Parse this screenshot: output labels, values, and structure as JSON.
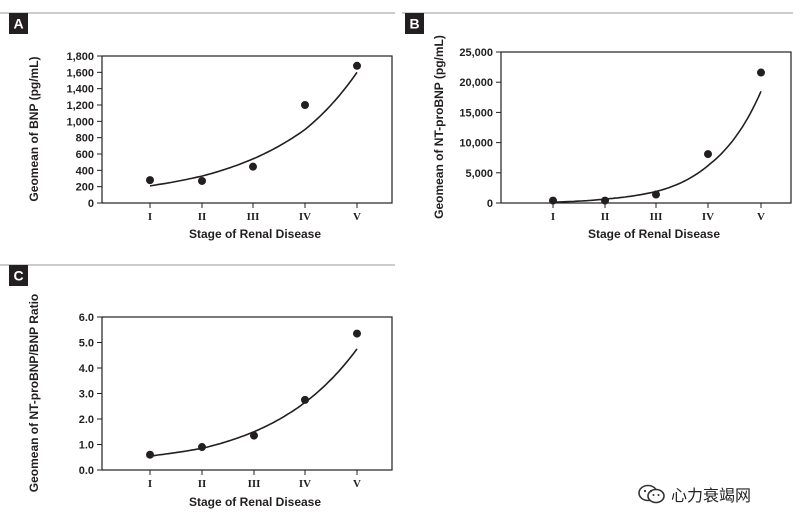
{
  "watermark": {
    "text": "心力衰竭网",
    "icon": "wechat-icon"
  },
  "chart_data": [
    {
      "panel": "A",
      "type": "scatter",
      "categories": [
        "I",
        "II",
        "III",
        "IV",
        "V"
      ],
      "values": [
        280,
        270,
        445,
        1200,
        1680
      ],
      "fit_curve": "exponential",
      "fit_values": [
        210,
        330,
        540,
        900,
        1600
      ],
      "ylabel": "Geomean of BNP (pg/mL)",
      "xlabel": "Stage of Renal Disease",
      "ylim": [
        0,
        1800
      ],
      "yticks": [
        0,
        200,
        400,
        600,
        800,
        1000,
        1200,
        1400,
        1600,
        1800
      ],
      "ytick_labels": [
        "0",
        "200",
        "400",
        "600",
        "800",
        "1,000",
        "1,200",
        "1,400",
        "1,600",
        "1,800"
      ]
    },
    {
      "panel": "B",
      "type": "scatter",
      "categories": [
        "I",
        "II",
        "III",
        "IV",
        "V"
      ],
      "values": [
        400,
        400,
        1400,
        8100,
        21600
      ],
      "fit_curve": "exponential",
      "fit_values": [
        150,
        650,
        1900,
        6200,
        18500
      ],
      "ylabel": "Geomean of NT-proBNP (pg/mL)",
      "xlabel": "Stage of Renal Disease",
      "ylim": [
        0,
        25000
      ],
      "yticks": [
        0,
        5000,
        10000,
        15000,
        20000,
        25000
      ],
      "ytick_labels": [
        "0",
        "5,000",
        "10,000",
        "15,000",
        "20,000",
        "25,000"
      ]
    },
    {
      "panel": "C",
      "type": "scatter",
      "categories": [
        "I",
        "II",
        "III",
        "IV",
        "V"
      ],
      "values": [
        0.6,
        0.9,
        1.35,
        2.75,
        5.35
      ],
      "fit_curve": "exponential",
      "fit_values": [
        0.55,
        0.85,
        1.5,
        2.65,
        4.75
      ],
      "ylabel": "Geomean of NT-proBNP/BNP Ratio",
      "xlabel": "Stage of Renal Disease",
      "ylim": [
        0,
        6.0
      ],
      "yticks": [
        0,
        1,
        2,
        3,
        4,
        5,
        6
      ],
      "ytick_labels": [
        "0.0",
        "1.0",
        "2.0",
        "3.0",
        "4.0",
        "5.0",
        "6.0"
      ]
    }
  ]
}
